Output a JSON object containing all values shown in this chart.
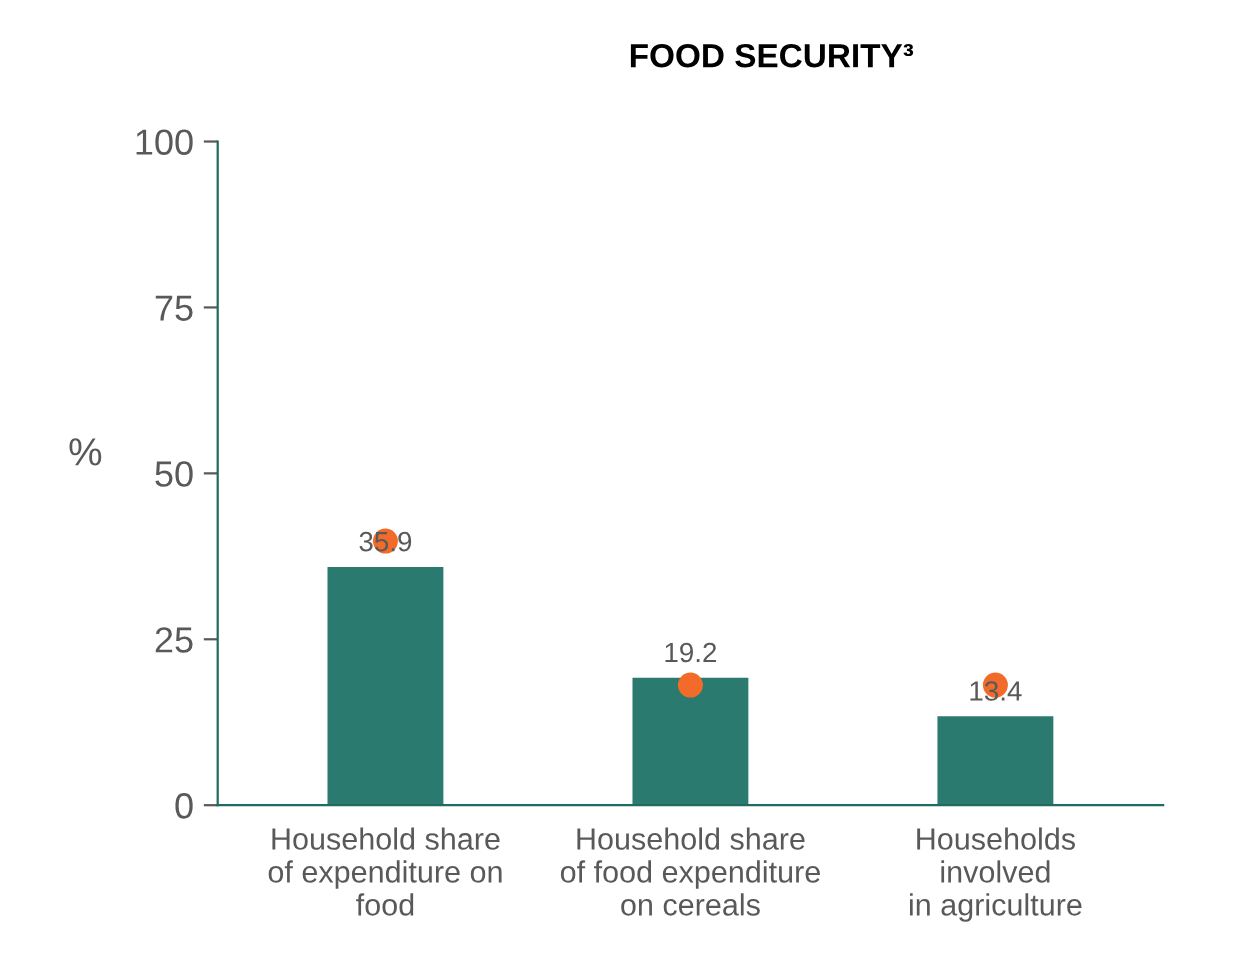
{
  "chart_data": {
    "type": "bar",
    "title": "FOOD SECURITY³",
    "ylabel": "%",
    "categories": [
      "Household share\nof expenditure on\nfood",
      "Household share\nof food expenditure\non cereals",
      "Households\ninvolved\nin agriculture"
    ],
    "series": [
      {
        "color": "#2a7a6f",
        "values": [
          35.9,
          19.2,
          13.4
        ],
        "value_labels": [
          "35.9",
          "19.2",
          "13.4"
        ]
      },
      {
        "type": "scatter",
        "color": "#f26b2a",
        "x": [
          "Household share\nof expenditure on\nfood",
          "Household share\nof food expenditure\non cereals",
          "Households\ninvolved\nin agriculture"
        ],
        "values": [
          39.8,
          18.1,
          18.1
        ]
      }
    ],
    "ylim": [
      0,
      100
    ],
    "yticks": [
      0,
      25,
      50,
      75,
      100
    ],
    "grid": false,
    "legend": false,
    "marker": "circle"
  }
}
